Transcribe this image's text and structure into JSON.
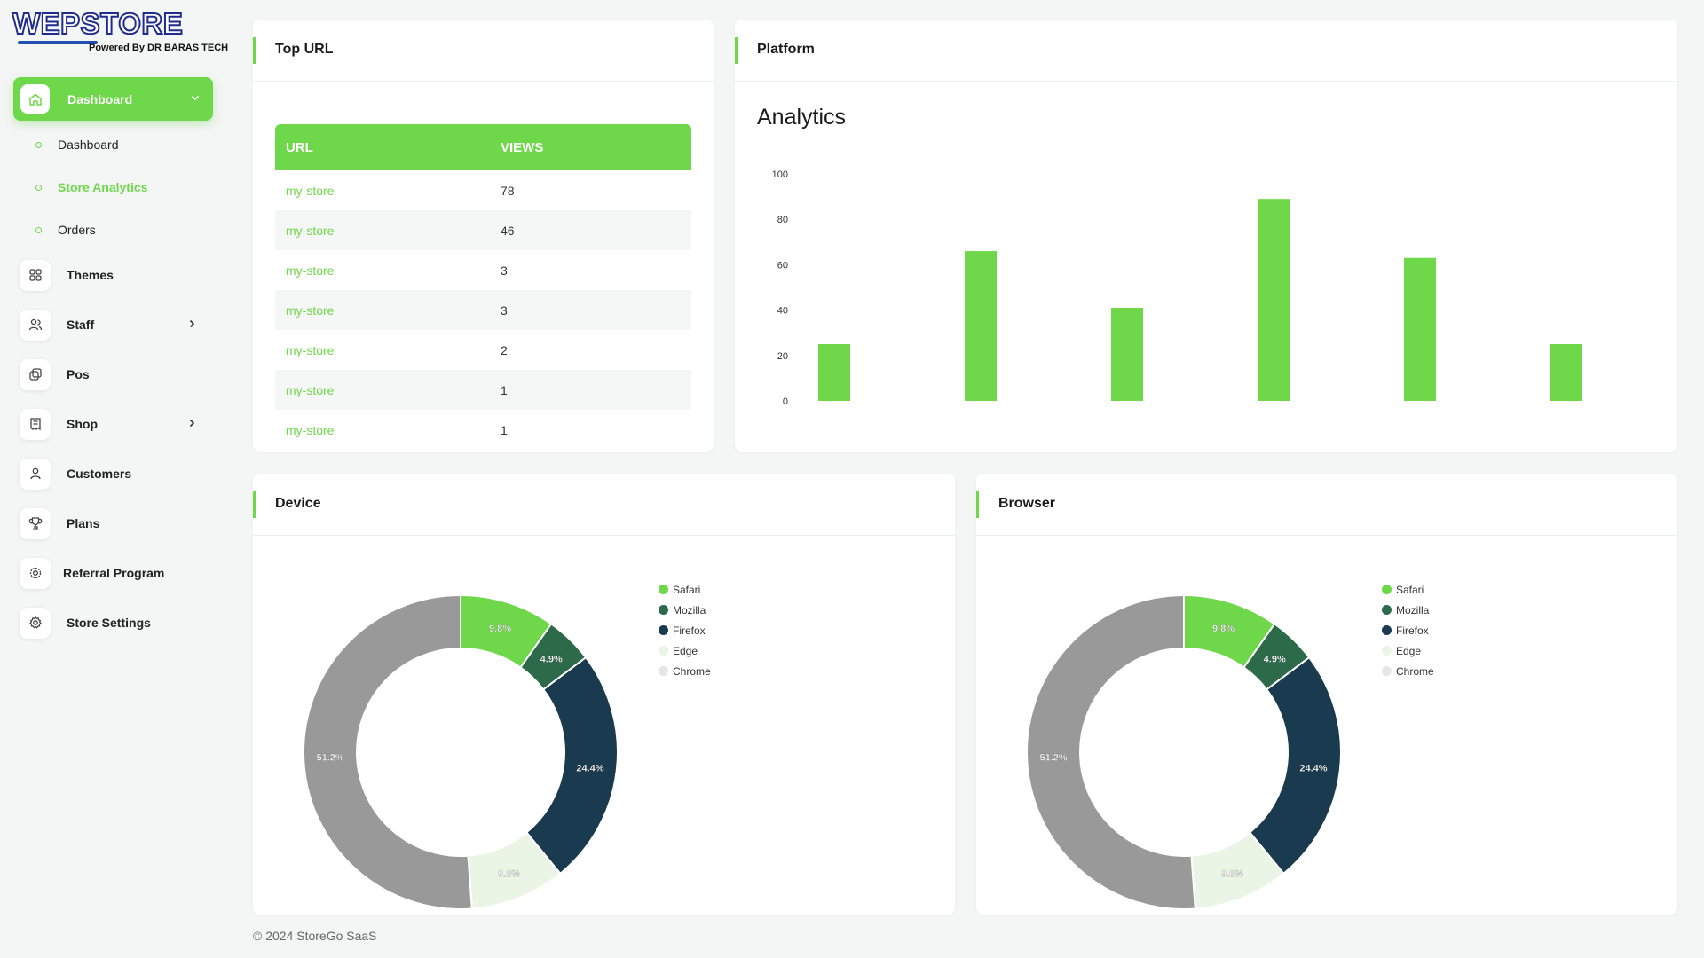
{
  "brand": {
    "logo_text": "WEPSTORE",
    "tagline": "Powered By DR BARAS TECH"
  },
  "sidebar": {
    "main": {
      "label": "Dashboard",
      "icon": "home-icon"
    },
    "subitems": [
      {
        "label": "Dashboard",
        "active": false
      },
      {
        "label": "Store Analytics",
        "active": true
      },
      {
        "label": "Orders",
        "active": false
      }
    ],
    "items": [
      {
        "label": "Themes",
        "icon": "grid-icon",
        "has_chevron": false
      },
      {
        "label": "Staff",
        "icon": "users-icon",
        "has_chevron": true
      },
      {
        "label": "Pos",
        "icon": "pos-icon",
        "has_chevron": false
      },
      {
        "label": "Shop",
        "icon": "receipt-icon",
        "has_chevron": true
      },
      {
        "label": "Customers",
        "icon": "user-icon",
        "has_chevron": false
      },
      {
        "label": "Plans",
        "icon": "trophy-icon",
        "has_chevron": false
      },
      {
        "label": "Referral Program",
        "icon": "badge-icon",
        "has_chevron": false
      },
      {
        "label": "Store Settings",
        "icon": "gear-icon",
        "has_chevron": false
      }
    ]
  },
  "top_url": {
    "title": "Top URL",
    "columns": [
      "URL",
      "VIEWS"
    ],
    "rows": [
      {
        "url": "my-store",
        "views": "78"
      },
      {
        "url": "my-store",
        "views": "46"
      },
      {
        "url": "my-store",
        "views": "3"
      },
      {
        "url": "my-store",
        "views": "3"
      },
      {
        "url": "my-store",
        "views": "2"
      },
      {
        "url": "my-store",
        "views": "1"
      },
      {
        "url": "my-store",
        "views": "1"
      }
    ]
  },
  "platform": {
    "title": "Platform",
    "chart_title": "Analytics"
  },
  "device": {
    "title": "Device"
  },
  "browser": {
    "title": "Browser"
  },
  "footer": "© 2024 StoreGo SaaS",
  "colors": {
    "accent": "#6fd84a",
    "dark_green": "#2d6a4a",
    "navy": "#1a3a4f",
    "pale": "#eaf5e6",
    "gray": "#999999"
  },
  "chart_data": [
    {
      "type": "bar",
      "title": "Analytics",
      "categories": [
        "",
        "",
        "",
        "",
        "",
        ""
      ],
      "values": [
        25,
        66,
        41,
        89,
        63,
        25
      ],
      "ylim": [
        0,
        100
      ],
      "yticks": [
        0,
        20,
        40,
        60,
        80,
        100
      ],
      "color": "#6fd84a"
    },
    {
      "type": "pie",
      "donut": true,
      "categories": [
        "Safari",
        "Mozilla",
        "Firefox",
        "Edge",
        "Chrome"
      ],
      "values": [
        9.8,
        4.9,
        24.4,
        9.8,
        51.2
      ],
      "labels": [
        "9.8%",
        "4.9%",
        "24.4%",
        "9.8%",
        "51.2%"
      ],
      "colors": [
        "#6fd84a",
        "#2d6a4a",
        "#1a3a4f",
        "#eaf5e6",
        "#999999"
      ],
      "legend_colors": [
        "#6fd84a",
        "#2d6a4a",
        "#1a3a4f",
        "#eaf5e6",
        "#e6e6e6"
      ]
    },
    {
      "type": "pie",
      "donut": true,
      "categories": [
        "Safari",
        "Mozilla",
        "Firefox",
        "Edge",
        "Chrome"
      ],
      "values": [
        9.8,
        4.9,
        24.4,
        9.8,
        51.2
      ],
      "labels": [
        "9.8%",
        "4.9%",
        "24.4%",
        "9.8%",
        "51.2%"
      ],
      "colors": [
        "#6fd84a",
        "#2d6a4a",
        "#1a3a4f",
        "#eaf5e6",
        "#999999"
      ],
      "legend_colors": [
        "#6fd84a",
        "#2d6a4a",
        "#1a3a4f",
        "#eaf5e6",
        "#e6e6e6"
      ]
    }
  ]
}
